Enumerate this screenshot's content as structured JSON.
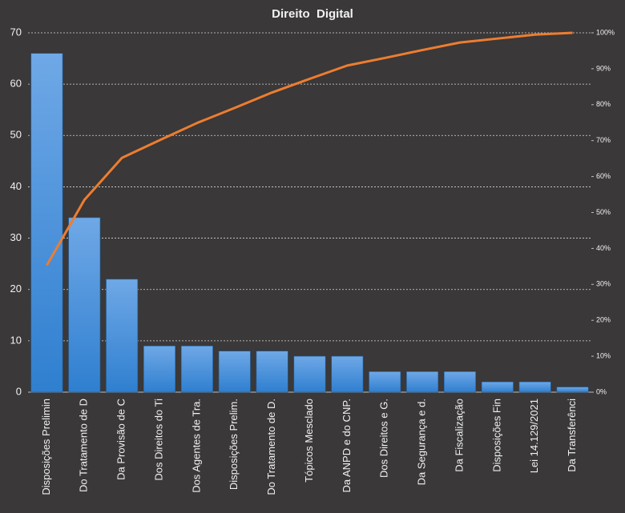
{
  "chart_data": {
    "type": "pareto",
    "title": "Direito  Digital",
    "categories": [
      "Disposições Prelimin",
      "Do Tratamento de D",
      "Da Provisão de C",
      "Dos Direitos do Ti",
      "Dos Agentes de Tra.",
      "Disposições Prelim.",
      "Do Tratamento de D.",
      "Tópicos Mesclado",
      "Da ANPD e do CNP.",
      "Dos Direitos e G.",
      "Da Segurança e d.",
      "Da Fiscalização",
      "Disposições Fin",
      "Lei 14.129/2021",
      "Da Transferênci"
    ],
    "series": [
      {
        "type": "bar",
        "color": "#4a90d9",
        "values": [
          66,
          34,
          22,
          9,
          9,
          8,
          8,
          7,
          7,
          4,
          4,
          4,
          2,
          2,
          1
        ]
      },
      {
        "type": "line",
        "axis": "y2",
        "color": "#ed7d31",
        "values": [
          35.3,
          53.5,
          65.2,
          70.1,
          74.9,
          79.1,
          83.4,
          87.2,
          90.9,
          93.0,
          95.2,
          97.3,
          98.4,
          99.5,
          100
        ]
      }
    ],
    "ylim": [
      0,
      70
    ],
    "yticks": [
      0,
      10,
      20,
      30,
      40,
      50,
      60,
      70
    ],
    "y2lim": [
      0,
      100
    ],
    "y2ticks": [
      {
        "value": 0,
        "label": "0%"
      },
      {
        "value": 10,
        "label": "10%"
      },
      {
        "value": 20,
        "label": "20%"
      },
      {
        "value": 30,
        "label": "30%"
      },
      {
        "value": 40,
        "label": "40%"
      },
      {
        "value": 50,
        "label": "50%"
      },
      {
        "value": 60,
        "label": "60%"
      },
      {
        "value": 70,
        "label": "70%"
      },
      {
        "value": 80,
        "label": "80%"
      },
      {
        "value": 90,
        "label": "90%"
      },
      {
        "value": 100,
        "label": "100%"
      }
    ],
    "grid": true
  }
}
